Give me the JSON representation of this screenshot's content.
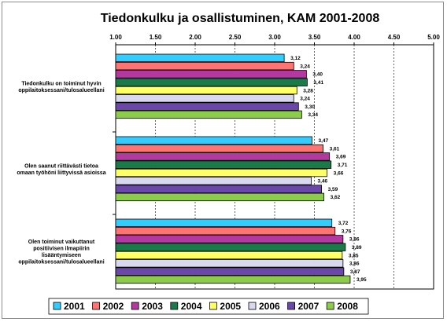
{
  "chart_data": {
    "type": "bar",
    "orientation": "horizontal",
    "title": "Tiedonkulku ja osallistuminen, KAM 2001-2008",
    "xlim": [
      1.0,
      5.0
    ],
    "x_ticks": [
      "1.00",
      "1.50",
      "2.00",
      "2.50",
      "3.00",
      "3.50",
      "4.00",
      "4.50",
      "5.00"
    ],
    "x_tick_values": [
      1.0,
      1.5,
      2.0,
      2.5,
      3.0,
      3.5,
      4.0,
      4.5,
      5.0
    ],
    "grid": true,
    "legend_position": "bottom",
    "categories": [
      [
        "Tiedonkulku on toiminut hyvin",
        "oppilaitoksessani/tulosalueellani"
      ],
      [
        "Olen saanut riittävästi tietoa",
        "omaan työhöni liittyvissä asioissa"
      ],
      [
        "Olen toiminut vaikuttanut",
        "positiivisen ilmapiirin",
        "lisääntymiseen",
        "oppilaitoksessani/tulosalueellani"
      ]
    ],
    "series": [
      {
        "name": "2001",
        "color": "#33ccff",
        "values": [
          3.12,
          3.47,
          3.72
        ],
        "labels": [
          "3,12",
          "3,47",
          "3,72"
        ]
      },
      {
        "name": "2002",
        "color": "#ff7373",
        "values": [
          3.24,
          3.61,
          3.76
        ],
        "labels": [
          "3,24",
          "3,61",
          "3,76"
        ]
      },
      {
        "name": "2003",
        "color": "#b3389f",
        "values": [
          3.4,
          3.69,
          3.86
        ],
        "labels": [
          "3,40",
          "3,69",
          "3,86"
        ]
      },
      {
        "name": "2004",
        "color": "#1a7a4a",
        "values": [
          3.41,
          3.71,
          3.89
        ],
        "labels": [
          "3,41",
          "3,71",
          "3,89"
        ]
      },
      {
        "name": "2005",
        "color": "#ffff66",
        "values": [
          3.28,
          3.66,
          3.85
        ],
        "labels": [
          "3,28",
          "3,66",
          "3,85"
        ]
      },
      {
        "name": "2006",
        "color": "#d8d8ee",
        "values": [
          3.24,
          3.46,
          3.86
        ],
        "labels": [
          "3,24",
          "3,46",
          "3,86"
        ]
      },
      {
        "name": "2007",
        "color": "#6a47a8",
        "values": [
          3.3,
          3.59,
          3.87
        ],
        "labels": [
          "3,30",
          "3,59",
          "3,87"
        ]
      },
      {
        "name": "2008",
        "color": "#8ccc4a",
        "values": [
          3.34,
          3.62,
          3.95
        ],
        "labels": [
          "3,34",
          "3,62",
          "3,95"
        ]
      }
    ]
  }
}
